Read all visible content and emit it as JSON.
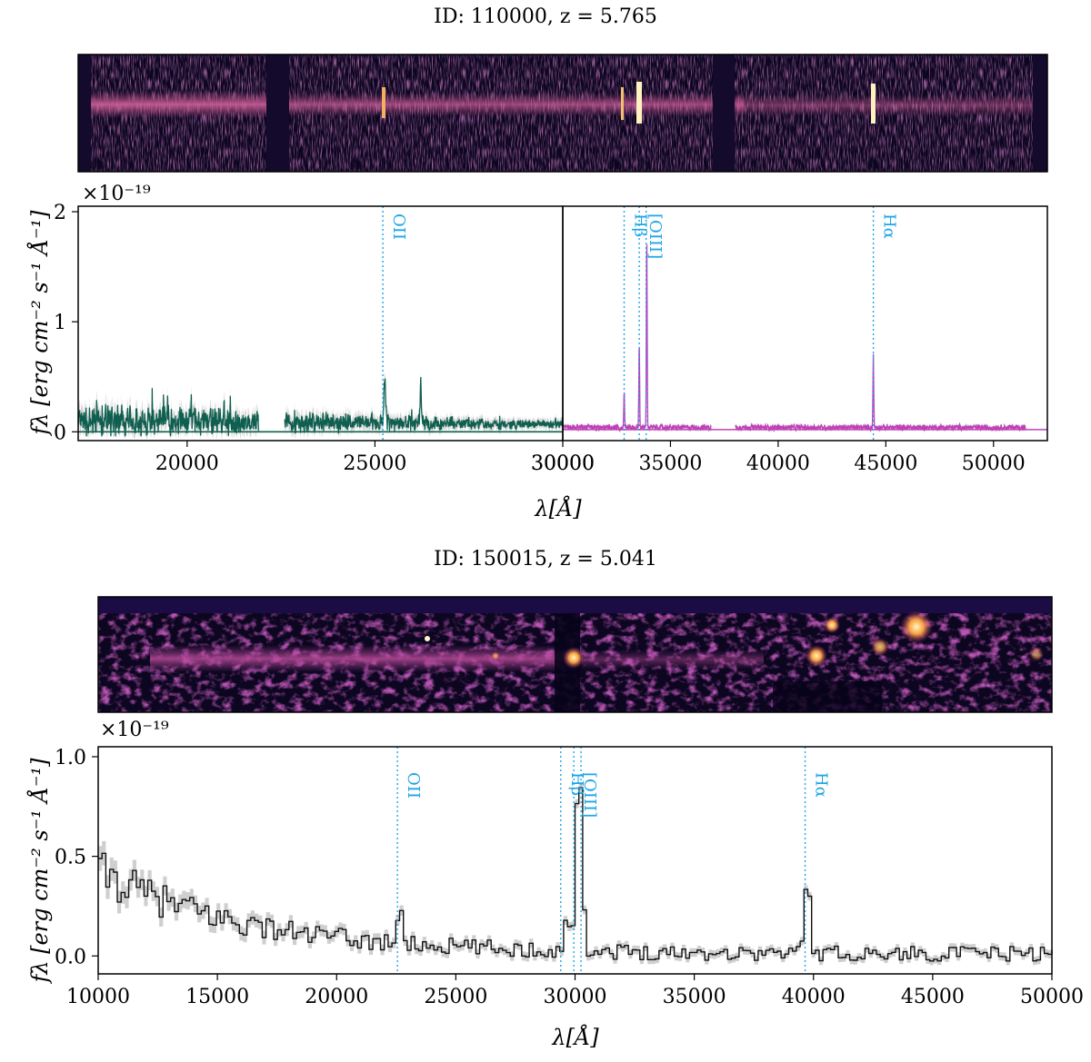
{
  "panels": [
    {
      "title": "ID: 110000, z = 5.765",
      "exponent": "×10⁻¹⁹",
      "ylabel": "fλ [erg cm⁻² s⁻¹ Å⁻¹]",
      "xlabel": "λ[Å]"
    },
    {
      "title": "ID: 150015, z = 5.041",
      "exponent": "×10⁻¹⁹",
      "ylabel": "fλ [erg cm⁻² s⁻¹ Å⁻¹]",
      "xlabel": "λ[Å]"
    }
  ],
  "colors": {
    "nircam_green": "#0e5f4f",
    "nircam_magenta": "#c03fb8",
    "prism_black": "#111111",
    "error_band": "#cfcfcf",
    "emission_line": "#1fa6e6",
    "image_background": "#0c0620"
  },
  "chart_data": [
    {
      "type": "line",
      "title": "ID: 110000, z = 5.765",
      "xlabel": "λ[Å]",
      "ylabel": "fλ [erg cm⁻² s⁻¹ Å⁻¹]",
      "y_scale_factor": "×10⁻¹⁹",
      "segments": [
        {
          "name": "left",
          "xlim": [
            17100,
            30000
          ],
          "xticks": [
            20000,
            25000,
            30000
          ]
        },
        {
          "name": "right",
          "xlim": [
            30000,
            52500
          ],
          "xticks": [
            35000,
            40000,
            45000,
            50000
          ]
        }
      ],
      "ylim": [
        -0.08,
        2.05
      ],
      "yticks": [
        0,
        1,
        2
      ],
      "series": [
        {
          "color": "#0e5f4f",
          "x_range": [
            17100,
            30000
          ],
          "gap": [
            21900,
            22600
          ],
          "continuum": 0.09,
          "noise": 0.12
        },
        {
          "color": "#c03fb8",
          "x_range": [
            30000,
            51500
          ],
          "gap": [
            36900,
            38000
          ],
          "continuum": 0.04,
          "noise": 0.02
        }
      ],
      "peaks": [
        {
          "x": 25260,
          "y": 0.42
        },
        {
          "x": 26220,
          "y": 0.38
        },
        {
          "x": 32850,
          "y": 0.33
        },
        {
          "x": 33550,
          "y": 0.76
        },
        {
          "x": 33900,
          "y": 1.73
        },
        {
          "x": 44420,
          "y": 0.66
        }
      ],
      "emission_lines": [
        {
          "label": "OII",
          "x": 25210
        },
        {
          "label": "Hβ",
          "x": 32850
        },
        {
          "label": "[OIII]",
          "x": 33550
        },
        {
          "label": "",
          "x": 33870
        },
        {
          "label": "Hα",
          "x": 44420
        }
      ]
    },
    {
      "type": "line",
      "title": "ID: 150015, z = 5.041",
      "xlabel": "λ[Å]",
      "ylabel": "fλ [erg cm⁻² s⁻¹ Å⁻¹]",
      "y_scale_factor": "×10⁻¹⁹",
      "xlim": [
        10000,
        50000
      ],
      "xticks": [
        10000,
        15000,
        20000,
        25000,
        30000,
        35000,
        40000,
        45000,
        50000
      ],
      "ylim": [
        -0.09,
        1.05
      ],
      "yticks": [
        0.0,
        0.5,
        1.0
      ],
      "series": [
        {
          "color": "#111111",
          "style": "step",
          "continuum_start": 0.42,
          "continuum_end": 0.01
        }
      ],
      "peaks": [
        {
          "x": 22550,
          "y": 0.16
        },
        {
          "x": 29600,
          "y": 0.16
        },
        {
          "x": 30100,
          "y": 0.94
        },
        {
          "x": 39650,
          "y": 0.39
        }
      ],
      "emission_lines": [
        {
          "label": "OII",
          "x": 22550
        },
        {
          "label": "Hβ",
          "x": 29400
        },
        {
          "label": "[OIII]",
          "x": 29950
        },
        {
          "label": "",
          "x": 30250
        },
        {
          "label": "Hα",
          "x": 39650
        }
      ]
    }
  ]
}
